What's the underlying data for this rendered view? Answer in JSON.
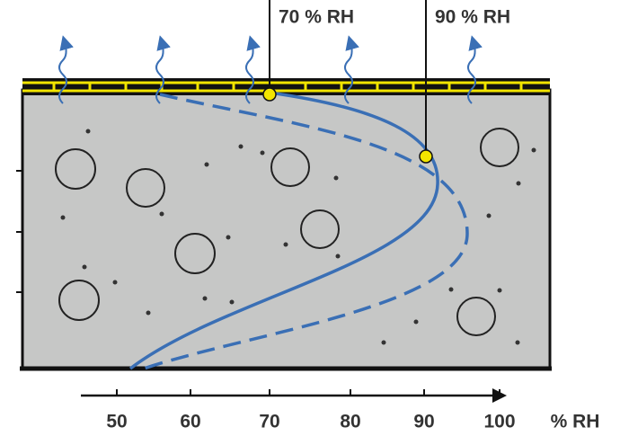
{
  "annotations": [
    "70 % RH",
    "90 % RH"
  ],
  "axis": {
    "tick_labels": [
      "50",
      "60",
      "70",
      "80",
      "90",
      "100"
    ],
    "unit": "% RH"
  }
}
